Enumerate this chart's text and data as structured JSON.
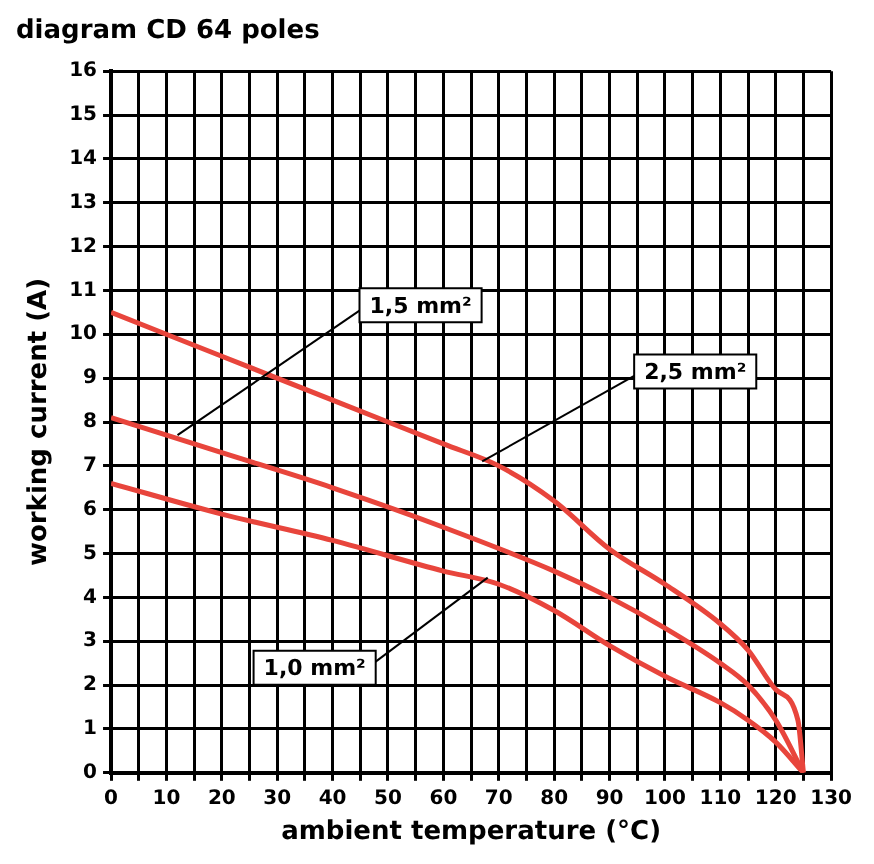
{
  "chart_data": {
    "type": "line",
    "title": "diagram CD 64 poles",
    "xlabel": "ambient temperature (°C)",
    "ylabel": "working current (A)",
    "xlim": [
      0,
      130
    ],
    "xticks": [
      0,
      {
        "value": 5,
        "label": null
      },
      10,
      {
        "value": 15,
        "label": null
      },
      20,
      {
        "value": 25,
        "label": null
      },
      30,
      {
        "value": 35,
        "label": null
      },
      40,
      {
        "value": 45,
        "label": null
      },
      50,
      {
        "value": 55,
        "label": null
      },
      60,
      {
        "value": 65,
        "label": null
      },
      70,
      {
        "value": 75,
        "label": null
      },
      80,
      {
        "value": 85,
        "label": null
      },
      90,
      {
        "value": 95,
        "label": null
      },
      100,
      {
        "value": 105,
        "label": null
      },
      110,
      {
        "value": 115,
        "label": null
      },
      120,
      {
        "value": 125,
        "label": null
      },
      130
    ],
    "ylim": [
      0,
      16
    ],
    "yticks": [
      0,
      1,
      2,
      3,
      4,
      5,
      6,
      7,
      8,
      9,
      10,
      11,
      12,
      13,
      14,
      15,
      16
    ],
    "grid": true,
    "legend": false,
    "marker": "none",
    "line_style": "solid",
    "series": [
      {
        "color": "#e8453c",
        "x": [
          0,
          20,
          40,
          60,
          70,
          80,
          90,
          100,
          110,
          115,
          120,
          124,
          125
        ],
        "values": [
          10.5,
          9.5,
          8.5,
          7.5,
          7.0,
          6.2,
          5.1,
          4.3,
          3.4,
          2.8,
          1.9,
          1.2,
          0
        ]
      },
      {
        "color": "#e8453c",
        "x": [
          0,
          20,
          40,
          60,
          80,
          90,
          100,
          110,
          115,
          120,
          125
        ],
        "values": [
          8.1,
          7.3,
          6.5,
          5.6,
          4.6,
          4.0,
          3.3,
          2.5,
          2.0,
          1.2,
          0
        ]
      },
      {
        "color": "#e8453c",
        "x": [
          0,
          20,
          40,
          60,
          70,
          80,
          90,
          100,
          110,
          115,
          120,
          125
        ],
        "values": [
          6.6,
          5.9,
          5.3,
          4.6,
          4.3,
          3.7,
          2.9,
          2.2,
          1.6,
          1.2,
          0.7,
          0
        ]
      }
    ],
    "annotations": [
      {
        "text": "2,5 mm²",
        "x": 67,
        "y": 7.1
      },
      {
        "text": "1,5 mm²",
        "x": 12,
        "y": 7.7
      },
      {
        "text": "1,0 mm²",
        "x": 68,
        "y": 4.45
      }
    ]
  }
}
